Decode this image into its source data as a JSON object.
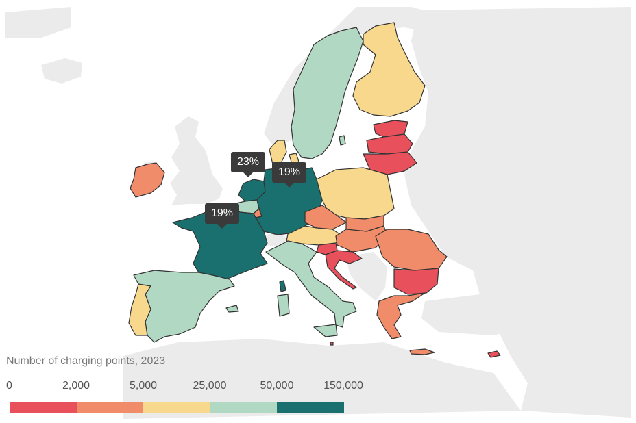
{
  "colors": {
    "background": "#ffffff",
    "land_outside": "#ebebeb",
    "border": "#333333",
    "bins": [
      "#e8505b",
      "#f08c6a",
      "#f8d88d",
      "#b1d8c3",
      "#19706f"
    ]
  },
  "legend": {
    "title": "Number of charging points, 2023",
    "ticks": [
      "0",
      "2,000",
      "5,000",
      "25,000",
      "50,000",
      "150,000"
    ]
  },
  "callouts": [
    {
      "country": "Netherlands",
      "label": "23%"
    },
    {
      "country": "Germany",
      "label": "19%"
    },
    {
      "country": "France",
      "label": "19%"
    }
  ],
  "countries": [
    {
      "name": "Sweden",
      "bin": 3
    },
    {
      "name": "Finland",
      "bin": 2
    },
    {
      "name": "Estonia",
      "bin": 0
    },
    {
      "name": "Latvia",
      "bin": 0
    },
    {
      "name": "Lithuania",
      "bin": 0
    },
    {
      "name": "Denmark",
      "bin": 2
    },
    {
      "name": "Ireland",
      "bin": 1
    },
    {
      "name": "Netherlands",
      "bin": 4
    },
    {
      "name": "Belgium",
      "bin": 3
    },
    {
      "name": "Luxembourg",
      "bin": 1
    },
    {
      "name": "Germany",
      "bin": 4
    },
    {
      "name": "Poland",
      "bin": 2
    },
    {
      "name": "Czechia",
      "bin": 1
    },
    {
      "name": "Slovakia",
      "bin": 1
    },
    {
      "name": "Austria",
      "bin": 2
    },
    {
      "name": "Hungary",
      "bin": 1
    },
    {
      "name": "Slovenia",
      "bin": 0
    },
    {
      "name": "Croatia",
      "bin": 0
    },
    {
      "name": "Romania",
      "bin": 1
    },
    {
      "name": "Bulgaria",
      "bin": 0
    },
    {
      "name": "Greece",
      "bin": 1
    },
    {
      "name": "France",
      "bin": 4
    },
    {
      "name": "Spain",
      "bin": 3
    },
    {
      "name": "Portugal",
      "bin": 2
    },
    {
      "name": "Italy",
      "bin": 3
    },
    {
      "name": "Cyprus",
      "bin": 0
    },
    {
      "name": "Malta",
      "bin": 0
    }
  ]
}
